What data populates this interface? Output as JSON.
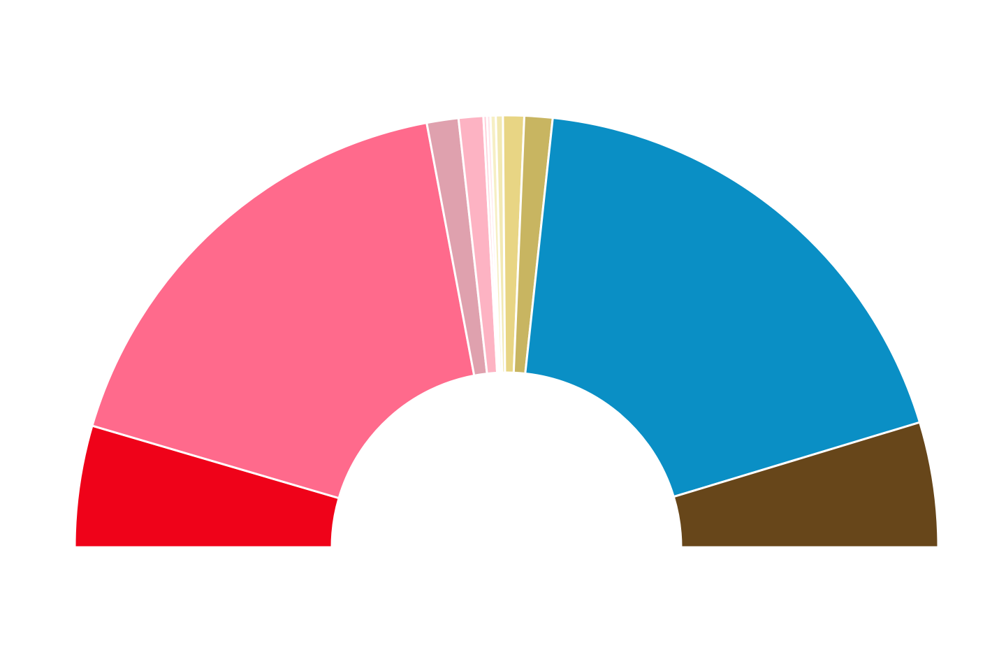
{
  "chart_data": {
    "type": "pie",
    "subtype": "half-donut",
    "title": "",
    "values": [
      6.9,
      26.6,
      1.8,
      1.4,
      0.2,
      0.2,
      0.3,
      0.4,
      1.2,
      1.6,
      28.3,
      7.1
    ],
    "colors": [
      "#EF0219",
      "#FF6A8C",
      "#DFA1AE",
      "#FDB3C3",
      "#FFD1DB",
      "#FFE4EA",
      "#F6EFC4",
      "#F2E9B2",
      "#E8D584",
      "#C8B561",
      "#0A8FC5",
      "#67461A"
    ],
    "series": [
      {
        "color": "#EF0219",
        "value": 6.9
      },
      {
        "color": "#FF6A8C",
        "value": 26.6
      },
      {
        "color": "#DFA1AE",
        "value": 1.8
      },
      {
        "color": "#FDB3C3",
        "value": 1.4
      },
      {
        "color": "#FFD1DB",
        "value": 0.2
      },
      {
        "color": "#FFE4EA",
        "value": 0.2
      },
      {
        "color": "#F6EFC4",
        "value": 0.3
      },
      {
        "color": "#F2E9B2",
        "value": 0.4
      },
      {
        "color": "#E8D584",
        "value": 1.2
      },
      {
        "color": "#C8B561",
        "value": 1.6
      },
      {
        "color": "#0A8FC5",
        "value": 28.3
      },
      {
        "color": "#67461A",
        "value": 7.1
      }
    ]
  }
}
